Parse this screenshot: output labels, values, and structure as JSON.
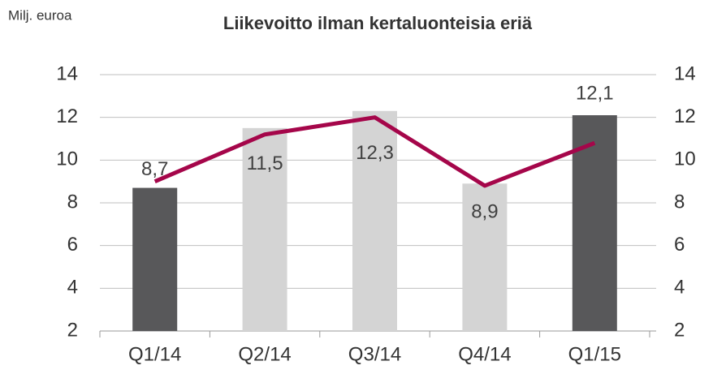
{
  "chart_data": {
    "type": "bar",
    "title": "Liikevoitto ilman kertaluonteisia eriä",
    "ylabel": "Milj. euroa",
    "categories": [
      "Q1/14",
      "Q2/14",
      "Q3/14",
      "Q4/14",
      "Q1/15"
    ],
    "series": [
      {
        "type": "bar",
        "values": [
          8.7,
          11.5,
          12.3,
          8.9,
          12.1
        ],
        "value_labels": [
          "8,7",
          "11,5",
          "12,3",
          "8,9",
          "12,1"
        ],
        "colors": [
          "#58585a",
          "#d4d4d4",
          "#d4d4d4",
          "#d4d4d4",
          "#58585a"
        ]
      },
      {
        "type": "line",
        "axis": "y2",
        "color": "#a5064a",
        "values": [
          9.0,
          11.2,
          12.0,
          8.8,
          10.8
        ]
      }
    ],
    "ylim": [
      2,
      14
    ],
    "yticks": [
      2,
      4,
      6,
      8,
      10,
      12,
      14
    ],
    "y2lim": [
      2,
      14
    ],
    "y2ticks": [
      2,
      4,
      6,
      8,
      10,
      12,
      14
    ],
    "grid": true
  }
}
